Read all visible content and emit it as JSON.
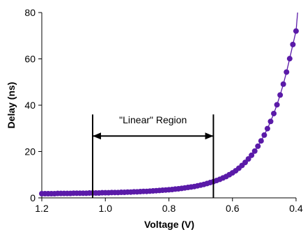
{
  "chart_data": {
    "type": "scatter",
    "title": "",
    "xlabel": "Voltage (V)",
    "ylabel": "Delay (ns)",
    "x_reversed": true,
    "xlim": [
      0.4,
      1.2
    ],
    "ylim": [
      0,
      80
    ],
    "xticks": [
      "1.2",
      "1.0",
      "0.8",
      "0.6",
      "0.4"
    ],
    "xtick_values": [
      1.2,
      1.0,
      0.8,
      0.6,
      0.4
    ],
    "yticks": [
      "0",
      "20",
      "40",
      "60",
      "80"
    ],
    "ytick_values": [
      0,
      20,
      40,
      60,
      80
    ],
    "grid": false,
    "legend": "none",
    "series": [
      {
        "color": "#5a1aa8",
        "style": "markers+line",
        "points": [
          {
            "x": 1.2,
            "y": 1.8
          },
          {
            "x": 1.19,
            "y": 1.8
          },
          {
            "x": 1.18,
            "y": 1.8
          },
          {
            "x": 1.17,
            "y": 1.8
          },
          {
            "x": 1.16,
            "y": 1.8
          },
          {
            "x": 1.15,
            "y": 1.9
          },
          {
            "x": 1.14,
            "y": 1.9
          },
          {
            "x": 1.13,
            "y": 1.9
          },
          {
            "x": 1.12,
            "y": 1.9
          },
          {
            "x": 1.11,
            "y": 1.9
          },
          {
            "x": 1.1,
            "y": 2.0
          },
          {
            "x": 1.09,
            "y": 2.0
          },
          {
            "x": 1.08,
            "y": 2.0
          },
          {
            "x": 1.07,
            "y": 2.0
          },
          {
            "x": 1.06,
            "y": 2.0
          },
          {
            "x": 1.05,
            "y": 2.1
          },
          {
            "x": 1.04,
            "y": 2.1
          },
          {
            "x": 1.03,
            "y": 2.1
          },
          {
            "x": 1.02,
            "y": 2.1
          },
          {
            "x": 1.01,
            "y": 2.2
          },
          {
            "x": 1.0,
            "y": 2.2
          },
          {
            "x": 0.99,
            "y": 2.2
          },
          {
            "x": 0.98,
            "y": 2.3
          },
          {
            "x": 0.97,
            "y": 2.3
          },
          {
            "x": 0.96,
            "y": 2.3
          },
          {
            "x": 0.95,
            "y": 2.4
          },
          {
            "x": 0.94,
            "y": 2.4
          },
          {
            "x": 0.93,
            "y": 2.5
          },
          {
            "x": 0.92,
            "y": 2.5
          },
          {
            "x": 0.91,
            "y": 2.6
          },
          {
            "x": 0.9,
            "y": 2.6
          },
          {
            "x": 0.89,
            "y": 2.7
          },
          {
            "x": 0.88,
            "y": 2.8
          },
          {
            "x": 0.87,
            "y": 2.8
          },
          {
            "x": 0.86,
            "y": 2.9
          },
          {
            "x": 0.85,
            "y": 3.0
          },
          {
            "x": 0.84,
            "y": 3.1
          },
          {
            "x": 0.83,
            "y": 3.2
          },
          {
            "x": 0.82,
            "y": 3.3
          },
          {
            "x": 0.81,
            "y": 3.4
          },
          {
            "x": 0.8,
            "y": 3.5
          },
          {
            "x": 0.79,
            "y": 3.6
          },
          {
            "x": 0.78,
            "y": 3.8
          },
          {
            "x": 0.77,
            "y": 3.9
          },
          {
            "x": 0.76,
            "y": 4.1
          },
          {
            "x": 0.75,
            "y": 4.3
          },
          {
            "x": 0.74,
            "y": 4.5
          },
          {
            "x": 0.73,
            "y": 4.7
          },
          {
            "x": 0.72,
            "y": 4.9
          },
          {
            "x": 0.71,
            "y": 5.2
          },
          {
            "x": 0.7,
            "y": 5.5
          },
          {
            "x": 0.69,
            "y": 5.8
          },
          {
            "x": 0.68,
            "y": 6.2
          },
          {
            "x": 0.67,
            "y": 6.6
          },
          {
            "x": 0.66,
            "y": 7.0
          },
          {
            "x": 0.65,
            "y": 7.5
          },
          {
            "x": 0.64,
            "y": 8.0
          },
          {
            "x": 0.63,
            "y": 8.6
          },
          {
            "x": 0.62,
            "y": 9.2
          },
          {
            "x": 0.61,
            "y": 10.0
          },
          {
            "x": 0.6,
            "y": 10.8
          },
          {
            "x": 0.59,
            "y": 11.7
          },
          {
            "x": 0.58,
            "y": 12.8
          },
          {
            "x": 0.57,
            "y": 14.0
          },
          {
            "x": 0.56,
            "y": 15.3
          },
          {
            "x": 0.55,
            "y": 16.8
          },
          {
            "x": 0.54,
            "y": 18.4
          },
          {
            "x": 0.53,
            "y": 20.2
          },
          {
            "x": 0.52,
            "y": 22.3
          },
          {
            "x": 0.51,
            "y": 24.6
          },
          {
            "x": 0.5,
            "y": 27.1
          },
          {
            "x": 0.49,
            "y": 29.9
          },
          {
            "x": 0.48,
            "y": 33.0
          },
          {
            "x": 0.47,
            "y": 36.4
          },
          {
            "x": 0.46,
            "y": 40.2
          },
          {
            "x": 0.45,
            "y": 44.4
          },
          {
            "x": 0.44,
            "y": 49.1
          },
          {
            "x": 0.43,
            "y": 54.3
          },
          {
            "x": 0.42,
            "y": 60.1
          },
          {
            "x": 0.41,
            "y": 66.2
          },
          {
            "x": 0.4,
            "y": 72.0
          }
        ],
        "trend_end": {
          "x": 0.395,
          "y": 80
        }
      }
    ],
    "annotations": [
      {
        "text": "\"Linear\" Region",
        "x_from": 1.04,
        "x_to": 0.66,
        "y_top": 36,
        "y_bottom": 0,
        "arrow_y": 26.7,
        "text_y": 32.2
      }
    ]
  }
}
